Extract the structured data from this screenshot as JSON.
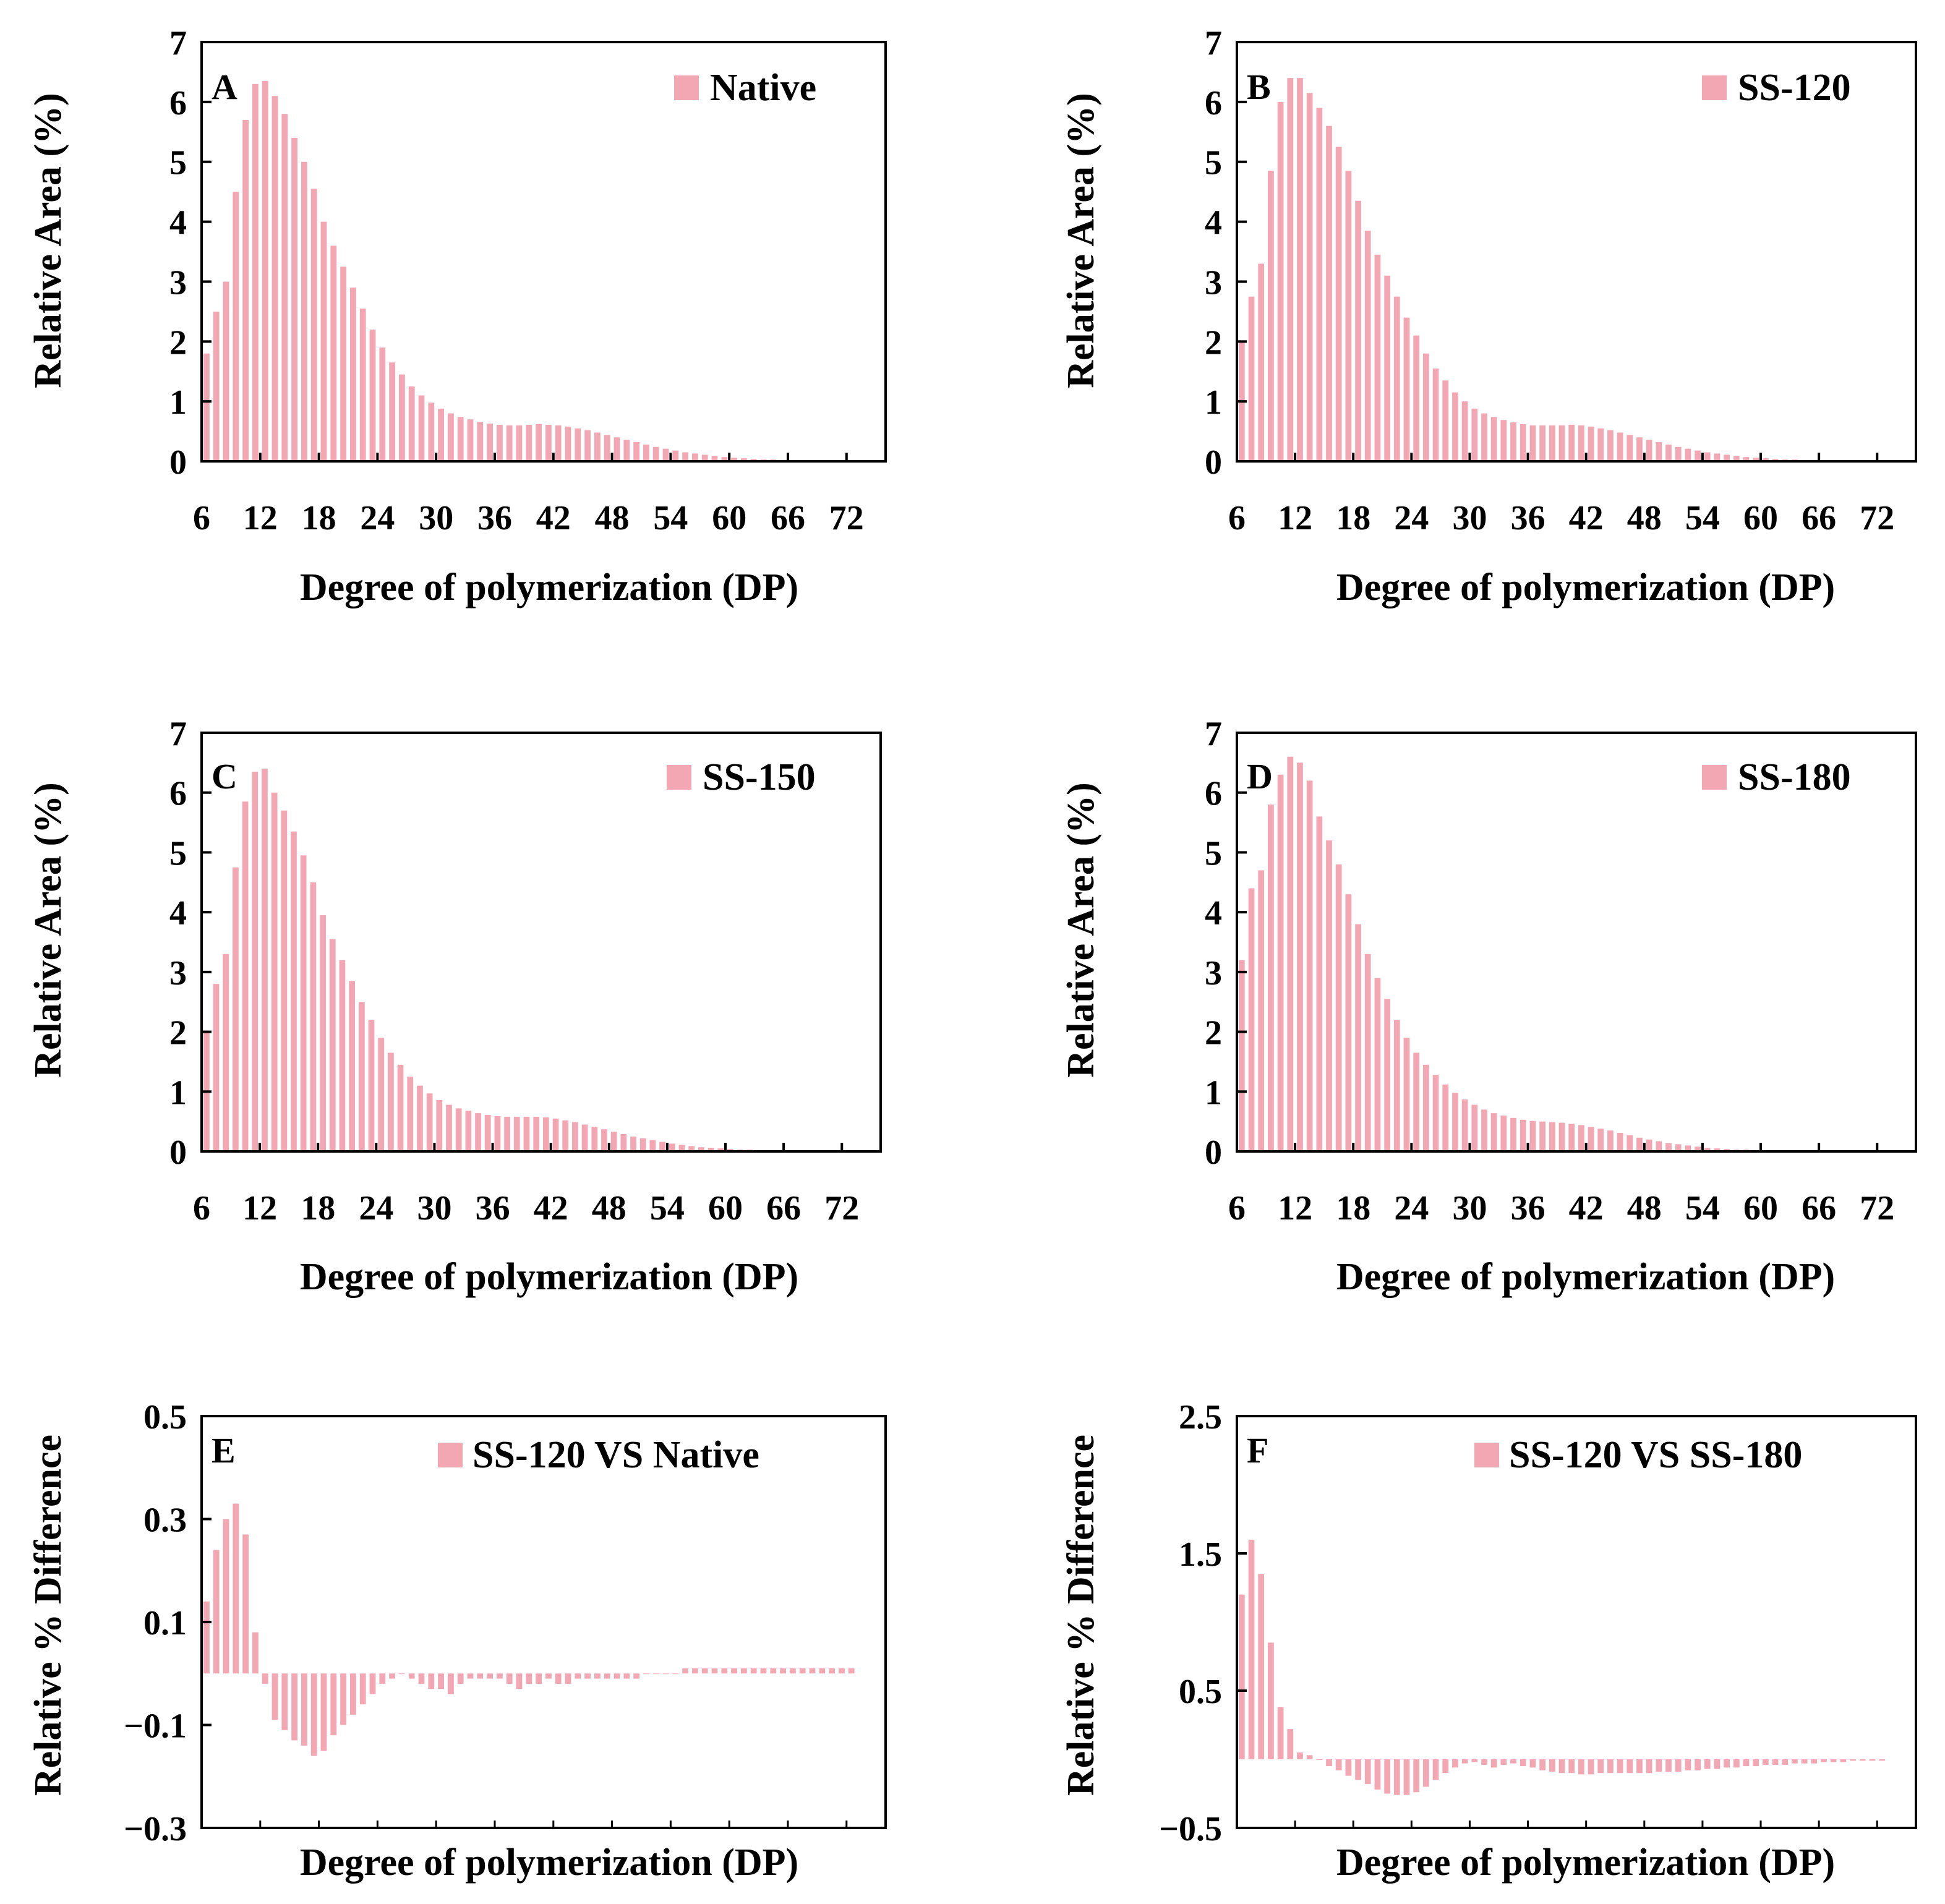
{
  "colors": {
    "bar": "#f2a7b3",
    "axis": "#000000",
    "background": "#ffffff"
  },
  "chart_data": [
    {
      "id": "A",
      "type": "bar",
      "panel_label": "A",
      "legend": "Native",
      "xlabel": "Degree of polymerization (DP)",
      "ylabel": "Relative Area (%)",
      "xlim": [
        6,
        76
      ],
      "ylim": [
        0,
        7
      ],
      "yticks": [
        0,
        1,
        2,
        3,
        4,
        5,
        6,
        7
      ],
      "xticks": [
        6,
        12,
        18,
        24,
        30,
        36,
        42,
        48,
        54,
        60,
        66,
        72
      ],
      "x_start": 6,
      "values": [
        1.8,
        2.5,
        3.0,
        4.5,
        5.7,
        6.3,
        6.35,
        6.1,
        5.8,
        5.4,
        5.0,
        4.55,
        4.0,
        3.6,
        3.25,
        2.9,
        2.55,
        2.2,
        1.9,
        1.65,
        1.45,
        1.25,
        1.1,
        0.98,
        0.88,
        0.8,
        0.74,
        0.7,
        0.66,
        0.63,
        0.61,
        0.6,
        0.6,
        0.61,
        0.62,
        0.61,
        0.6,
        0.58,
        0.55,
        0.52,
        0.48,
        0.44,
        0.4,
        0.36,
        0.32,
        0.28,
        0.24,
        0.21,
        0.18,
        0.15,
        0.13,
        0.11,
        0.09,
        0.07,
        0.06,
        0.05,
        0.04,
        0.03,
        0.03,
        0.02,
        0.02,
        0.01,
        0.01,
        0.01,
        0.01,
        0.01,
        0.01
      ]
    },
    {
      "id": "B",
      "type": "bar",
      "panel_label": "B",
      "legend": "SS-120",
      "xlabel": "Degree of polymerization (DP)",
      "ylabel": "Relative Area (%)",
      "xlim": [
        6,
        76
      ],
      "ylim": [
        0,
        7
      ],
      "yticks": [
        0,
        1,
        2,
        3,
        4,
        5,
        6,
        7
      ],
      "xticks": [
        6,
        12,
        18,
        24,
        30,
        36,
        42,
        48,
        54,
        60,
        66,
        72
      ],
      "x_start": 6,
      "values": [
        2.0,
        2.75,
        3.3,
        4.85,
        6.0,
        6.4,
        6.4,
        6.15,
        5.9,
        5.6,
        5.25,
        4.85,
        4.35,
        3.85,
        3.45,
        3.1,
        2.75,
        2.4,
        2.1,
        1.8,
        1.55,
        1.35,
        1.15,
        1.0,
        0.88,
        0.8,
        0.74,
        0.69,
        0.65,
        0.62,
        0.6,
        0.6,
        0.6,
        0.6,
        0.61,
        0.6,
        0.58,
        0.55,
        0.52,
        0.48,
        0.44,
        0.4,
        0.36,
        0.32,
        0.28,
        0.24,
        0.21,
        0.18,
        0.15,
        0.13,
        0.11,
        0.09,
        0.07,
        0.06,
        0.05,
        0.04,
        0.03,
        0.03,
        0.02,
        0.02,
        0.01,
        0.01,
        0.01,
        0.01,
        0.01,
        0.01,
        0.01
      ]
    },
    {
      "id": "C",
      "type": "bar",
      "panel_label": "C",
      "legend": "SS-150",
      "xlabel": "Degree of polymerization (DP)",
      "ylabel": "Relative Area (%)",
      "xlim": [
        6,
        76
      ],
      "ylim": [
        0,
        7
      ],
      "yticks": [
        0,
        1,
        2,
        3,
        4,
        5,
        6,
        7
      ],
      "xticks": [
        6,
        12,
        18,
        24,
        30,
        36,
        42,
        48,
        54,
        60,
        66,
        72
      ],
      "x_start": 6,
      "values": [
        2.0,
        2.8,
        3.3,
        4.75,
        5.85,
        6.35,
        6.4,
        6.0,
        5.7,
        5.35,
        4.95,
        4.5,
        3.95,
        3.55,
        3.2,
        2.85,
        2.5,
        2.2,
        1.9,
        1.65,
        1.45,
        1.25,
        1.1,
        0.97,
        0.86,
        0.78,
        0.72,
        0.68,
        0.64,
        0.61,
        0.59,
        0.58,
        0.58,
        0.58,
        0.58,
        0.57,
        0.55,
        0.52,
        0.49,
        0.45,
        0.41,
        0.37,
        0.33,
        0.29,
        0.25,
        0.22,
        0.19,
        0.16,
        0.13,
        0.11,
        0.09,
        0.07,
        0.06,
        0.05,
        0.04,
        0.03,
        0.03,
        0.02,
        0.02,
        0.01,
        0.01,
        0.01,
        0.01,
        0.01,
        0.01,
        0.01,
        0.01
      ]
    },
    {
      "id": "D",
      "type": "bar",
      "panel_label": "D",
      "legend": "SS-180",
      "xlabel": "Degree of polymerization (DP)",
      "ylabel": "Relative Area (%)",
      "xlim": [
        6,
        76
      ],
      "ylim": [
        0,
        7
      ],
      "yticks": [
        0,
        1,
        2,
        3,
        4,
        5,
        6,
        7
      ],
      "xticks": [
        6,
        12,
        18,
        24,
        30,
        36,
        42,
        48,
        54,
        60,
        66,
        72
      ],
      "x_start": 6,
      "values": [
        3.2,
        4.4,
        4.7,
        5.8,
        6.3,
        6.6,
        6.5,
        6.2,
        5.6,
        5.2,
        4.8,
        4.3,
        3.8,
        3.3,
        2.9,
        2.55,
        2.2,
        1.9,
        1.65,
        1.45,
        1.28,
        1.12,
        0.98,
        0.87,
        0.78,
        0.7,
        0.64,
        0.6,
        0.56,
        0.53,
        0.51,
        0.5,
        0.49,
        0.48,
        0.46,
        0.44,
        0.41,
        0.38,
        0.35,
        0.31,
        0.27,
        0.23,
        0.2,
        0.17,
        0.14,
        0.12,
        0.1,
        0.08,
        0.06,
        0.05,
        0.04,
        0.03,
        0.03,
        0.02,
        0.02,
        0.01,
        0.01,
        0.01,
        0.01,
        0.01,
        0.01,
        0.01,
        0.01,
        0.01,
        0.01,
        0.01,
        0.01
      ]
    },
    {
      "id": "E",
      "type": "bar",
      "panel_label": "E",
      "legend": "SS-120 VS Native",
      "xlabel": "Degree of polymerization (DP)",
      "ylabel": "Relative % Difference",
      "xlim": [
        6,
        76
      ],
      "ylim": [
        -0.3,
        0.5
      ],
      "yticks": [
        -0.3,
        -0.1,
        0.1,
        0.3,
        0.5
      ],
      "yticks_labeled": [
        "-0.3",
        "-0.1",
        "0.1",
        "0.3",
        "0.5"
      ],
      "xticks": [],
      "x_start": 6,
      "values": [
        0.14,
        0.24,
        0.3,
        0.33,
        0.27,
        0.08,
        -0.02,
        -0.09,
        -0.11,
        -0.13,
        -0.14,
        -0.16,
        -0.15,
        -0.12,
        -0.1,
        -0.08,
        -0.06,
        -0.04,
        -0.02,
        -0.01,
        0.0,
        -0.01,
        -0.02,
        -0.03,
        -0.03,
        -0.04,
        -0.02,
        -0.01,
        -0.01,
        -0.01,
        -0.01,
        -0.02,
        -0.03,
        -0.02,
        -0.02,
        -0.01,
        -0.02,
        -0.02,
        -0.01,
        -0.01,
        -0.01,
        -0.01,
        -0.01,
        -0.01,
        -0.01,
        -0.0,
        -0.0,
        0.0,
        0.0,
        0.01,
        0.01,
        0.01,
        0.01,
        0.01,
        0.01,
        0.01,
        0.01,
        0.01,
        0.01,
        0.01,
        0.01,
        0.01,
        0.01,
        0.01,
        0.01,
        0.01,
        0.01
      ]
    },
    {
      "id": "F",
      "type": "bar",
      "panel_label": "F",
      "legend": "SS-120 VS SS-180",
      "xlabel": "Degree of polymerization (DP)",
      "ylabel": "Relative % Difference",
      "xlim": [
        6,
        76
      ],
      "ylim": [
        -0.5,
        2.5
      ],
      "yticks": [
        -0.5,
        0.5,
        1.5,
        2.5
      ],
      "yticks_labeled": [
        "-0.5",
        "0.5",
        "1.5",
        "2.5"
      ],
      "xticks": [],
      "x_start": 6,
      "values": [
        1.2,
        1.6,
        1.35,
        0.85,
        0.38,
        0.22,
        0.05,
        0.03,
        0.0,
        -0.05,
        -0.08,
        -0.12,
        -0.15,
        -0.18,
        -0.22,
        -0.25,
        -0.26,
        -0.26,
        -0.24,
        -0.2,
        -0.15,
        -0.1,
        -0.06,
        -0.03,
        -0.02,
        -0.04,
        -0.06,
        -0.04,
        -0.03,
        -0.05,
        -0.06,
        -0.08,
        -0.09,
        -0.1,
        -0.1,
        -0.11,
        -0.11,
        -0.1,
        -0.1,
        -0.1,
        -0.1,
        -0.1,
        -0.1,
        -0.09,
        -0.09,
        -0.09,
        -0.08,
        -0.08,
        -0.07,
        -0.07,
        -0.06,
        -0.06,
        -0.05,
        -0.05,
        -0.04,
        -0.04,
        -0.04,
        -0.03,
        -0.03,
        -0.03,
        -0.02,
        -0.02,
        -0.02,
        -0.01,
        -0.01,
        -0.01,
        -0.01
      ]
    }
  ]
}
